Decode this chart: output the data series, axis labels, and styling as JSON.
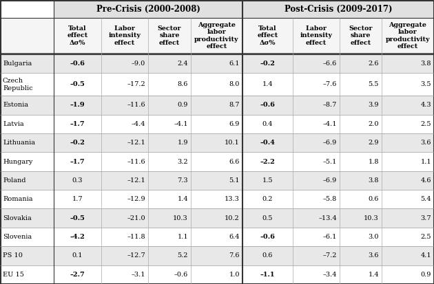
{
  "group_pre": "Pre-Crisis (2000-2008)",
  "group_post": "Post-Crisis (2009-2017)",
  "col_headers": [
    "Total\neffect\nΔσ%",
    "Labor\nintensity\neffect",
    "Sector\nshare\neffect",
    "Aggregate\nlabor\nproductivity\neffect"
  ],
  "countries": [
    "Bulgaria",
    "Czech\nRepublic",
    "Estonia",
    "Latvia",
    "Lithuania",
    "Hungary",
    "Poland",
    "Romania",
    "Slovakia",
    "Slovenia",
    "PS 10",
    "EU 15"
  ],
  "pre_data": [
    [
      "-0.6",
      "-9.0",
      "2.4",
      "6.1"
    ],
    [
      "-0.5",
      "-17.2",
      "8.6",
      "8.0"
    ],
    [
      "-1.9",
      "-11.6",
      "0.9",
      "8.7"
    ],
    [
      "-1.7",
      "-4.4",
      "-4.1",
      "6.9"
    ],
    [
      "-0.2",
      "-12.1",
      "1.9",
      "10.1"
    ],
    [
      "-1.7",
      "-11.6",
      "3.2",
      "6.6"
    ],
    [
      "0.3",
      "-12.1",
      "7.3",
      "5.1"
    ],
    [
      "1.7",
      "-12.9",
      "1.4",
      "13.3"
    ],
    [
      "-0.5",
      "-21.0",
      "10.3",
      "10.2"
    ],
    [
      "-4.2",
      "-11.8",
      "1.1",
      "6.4"
    ],
    [
      "0.1",
      "-12.7",
      "5.2",
      "7.6"
    ],
    [
      "-2.7",
      "-3.1",
      "-0.6",
      "1.0"
    ]
  ],
  "post_data": [
    [
      "-0.2",
      "-6.6",
      "2.6",
      "3.8"
    ],
    [
      "1.4",
      "-7.6",
      "5.5",
      "3.5"
    ],
    [
      "-0.6",
      "-8.7",
      "3.9",
      "4.3"
    ],
    [
      "0.4",
      "-4.1",
      "2.0",
      "2.5"
    ],
    [
      "-0.4",
      "-6.9",
      "2.9",
      "3.6"
    ],
    [
      "-2.2",
      "-5.1",
      "1.8",
      "1.1"
    ],
    [
      "1.5",
      "-6.9",
      "3.8",
      "4.6"
    ],
    [
      "0.2",
      "-5.8",
      "0.6",
      "5.4"
    ],
    [
      "0.5",
      "-13.4",
      "10.3",
      "3.7"
    ],
    [
      "-0.6",
      "-6.1",
      "3.0",
      "2.5"
    ],
    [
      "0.6",
      "-7.2",
      "3.6",
      "4.1"
    ],
    [
      "-1.1",
      "-3.4",
      "1.4",
      "0.9"
    ]
  ],
  "bold_pre": [
    true,
    true,
    true,
    true,
    true,
    true,
    false,
    false,
    true,
    true,
    false,
    true
  ],
  "bold_post": [
    true,
    false,
    true,
    false,
    true,
    true,
    false,
    false,
    false,
    true,
    false,
    true
  ],
  "shaded_rows": [
    0,
    2,
    4,
    6,
    8,
    10
  ],
  "shade_color": "#e8e8e8",
  "white": "#ffffff",
  "header_bg": "#e0e0e0",
  "col_header_bg": "#f5f5f5"
}
